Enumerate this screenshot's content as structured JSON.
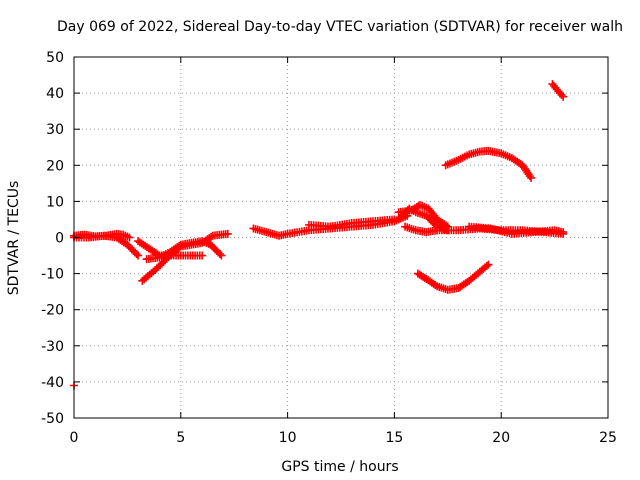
{
  "chart_data": {
    "type": "scatter",
    "title": "Day 069 of 2022, Sidereal Day-to-day VTEC variation (SDTVAR) for receiver walh",
    "xlabel": "GPS time / hours",
    "ylabel": "SDTVAR / TECUs",
    "xlim": [
      0,
      25
    ],
    "ylim": [
      -50,
      50
    ],
    "xticks": [
      0,
      5,
      10,
      15,
      20,
      25
    ],
    "yticks": [
      -50,
      -40,
      -30,
      -20,
      -10,
      0,
      10,
      20,
      30,
      40,
      50
    ],
    "xtick_labels": [
      "0",
      "5",
      "10",
      "15",
      "20",
      "25"
    ],
    "ytick_labels": [
      "-50",
      "-40",
      "-30",
      "-20",
      "-10",
      "0",
      "10",
      "20",
      "30",
      "40",
      "50"
    ],
    "grid": true,
    "marker": "+",
    "colors": {
      "series": "#ff0000",
      "grid": "#a0a0a0",
      "axis": "#000000"
    },
    "series": [
      {
        "name": "isolated-point",
        "x": [
          0.0
        ],
        "y": [
          -41
        ]
      },
      {
        "name": "arc-a",
        "x": [
          0.0,
          0.5,
          1.0,
          1.5,
          2.0,
          2.3,
          2.6
        ],
        "y": [
          0.5,
          0.8,
          0.3,
          0.5,
          1.0,
          0.8,
          0.0
        ]
      },
      {
        "name": "arc-b",
        "x": [
          0.0,
          0.7,
          1.4,
          2.0,
          2.5,
          3.0
        ],
        "y": [
          0.0,
          0.0,
          0.5,
          0.0,
          -2.0,
          -5.0
        ]
      },
      {
        "name": "arc-c",
        "x": [
          3.0,
          3.5,
          4.0,
          5.0,
          6.0
        ],
        "y": [
          -1.0,
          -3.0,
          -5.0,
          -5.0,
          -5.0
        ]
      },
      {
        "name": "arc-d",
        "x": [
          3.2,
          3.8,
          4.5,
          5.0,
          5.5,
          6.0,
          6.5,
          7.2
        ],
        "y": [
          -12.0,
          -9.0,
          -5.0,
          -2.5,
          -2.0,
          -1.5,
          0.5,
          1.0
        ]
      },
      {
        "name": "arc-e",
        "x": [
          3.4,
          4.0,
          4.5,
          5.0,
          5.5,
          6.0,
          6.4,
          6.9
        ],
        "y": [
          -6.0,
          -5.5,
          -4.0,
          -2.0,
          -1.5,
          -1.0,
          -2.0,
          -5.0
        ]
      },
      {
        "name": "arc-f",
        "x": [
          8.4,
          9.0,
          9.6,
          10.0,
          11.0,
          12.0,
          13.0,
          14.0,
          15.0,
          15.6
        ],
        "y": [
          2.5,
          1.5,
          0.5,
          1.0,
          2.0,
          2.5,
          3.0,
          3.5,
          4.5,
          6.0
        ]
      },
      {
        "name": "arc-g",
        "x": [
          11.0,
          12.0,
          13.0,
          14.0,
          15.0
        ],
        "y": [
          3.5,
          3.0,
          4.0,
          4.5,
          5.0
        ]
      },
      {
        "name": "arc-h",
        "x": [
          15.2,
          15.7,
          16.0,
          16.5,
          17.0,
          17.5
        ],
        "y": [
          5.0,
          8.0,
          7.0,
          6.0,
          3.0,
          2.0
        ]
      },
      {
        "name": "arc-i",
        "x": [
          15.2,
          15.8,
          16.2,
          16.6,
          17.0,
          17.5
        ],
        "y": [
          7.0,
          7.5,
          9.0,
          8.0,
          5.0,
          3.0
        ]
      },
      {
        "name": "arc-j",
        "x": [
          15.5,
          16.0,
          16.5,
          17.0
        ],
        "y": [
          3.0,
          2.0,
          1.5,
          2.0
        ]
      },
      {
        "name": "arc-k",
        "x": [
          17.0,
          18.0,
          19.0,
          20.0,
          21.0,
          22.0,
          22.9
        ],
        "y": [
          2.0,
          2.0,
          2.5,
          2.0,
          2.0,
          1.5,
          1.0
        ]
      },
      {
        "name": "arc-l",
        "x": [
          18.5,
          19.5,
          20.5,
          21.5,
          22.5,
          22.9
        ],
        "y": [
          3.0,
          2.5,
          1.0,
          1.5,
          2.0,
          1.5
        ]
      },
      {
        "name": "arc-m",
        "x": [
          16.1,
          16.5,
          17.0,
          17.5,
          18.0,
          18.5,
          19.0,
          19.4
        ],
        "y": [
          -10.0,
          -11.5,
          -13.5,
          -14.5,
          -14.0,
          -12.0,
          -9.5,
          -7.5
        ]
      },
      {
        "name": "arc-n",
        "x": [
          17.4,
          18.0,
          18.5,
          19.0,
          19.4,
          20.0,
          20.5,
          21.0,
          21.4
        ],
        "y": [
          20.0,
          21.5,
          23.0,
          23.8,
          24.0,
          23.3,
          22.0,
          20.0,
          16.5
        ]
      },
      {
        "name": "arc-o",
        "x": [
          22.4,
          22.6,
          22.9
        ],
        "y": [
          42.5,
          41.0,
          39.0
        ]
      }
    ]
  }
}
